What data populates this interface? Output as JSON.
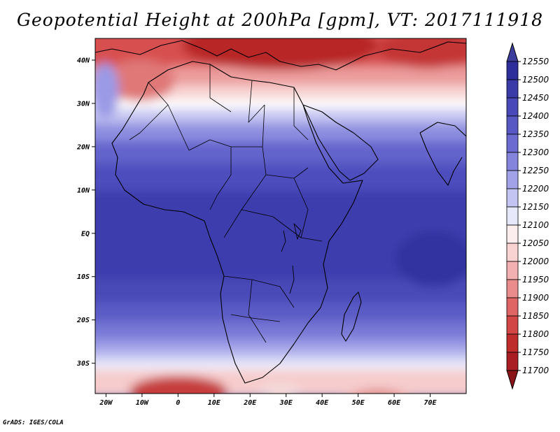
{
  "title": "Geopotential Height at 200hPa [gpm], VT: 2017111918",
  "credit": "GrADS: IGES/COLA",
  "map": {
    "region": "Africa",
    "lon_range": [
      -23,
      80
    ],
    "lat_range": [
      -37,
      45
    ],
    "lon_ticks": [
      "20W",
      "10W",
      "0",
      "10E",
      "20E",
      "30E",
      "40E",
      "50E",
      "60E",
      "70E"
    ],
    "lat_ticks": [
      "40N",
      "30N",
      "20N",
      "10N",
      "EQ",
      "10S",
      "20S",
      "30S"
    ],
    "colors": {
      "low": "#a11a1f",
      "mid": "#ffffff",
      "high": "#2d2d9b",
      "coast": "#000000"
    }
  },
  "colorbar": {
    "levels": [
      "12550",
      "12500",
      "12450",
      "12400",
      "12350",
      "12300",
      "12250",
      "12200",
      "12150",
      "12100",
      "12050",
      "12000",
      "11950",
      "11900",
      "11850",
      "11800",
      "11750",
      "11700"
    ],
    "colors": [
      "#3c3c9c",
      "#2d2d9b",
      "#3a3aa8",
      "#4848b8",
      "#5858c4",
      "#6a6ad0",
      "#8484dc",
      "#a2a2e8",
      "#c4c4f2",
      "#e8e8fb",
      "#fdeeee",
      "#f9d2d2",
      "#f3b0b0",
      "#ea8c8c",
      "#df6565",
      "#d24646",
      "#bf2c2c",
      "#a81e23",
      "#8a1418"
    ]
  }
}
